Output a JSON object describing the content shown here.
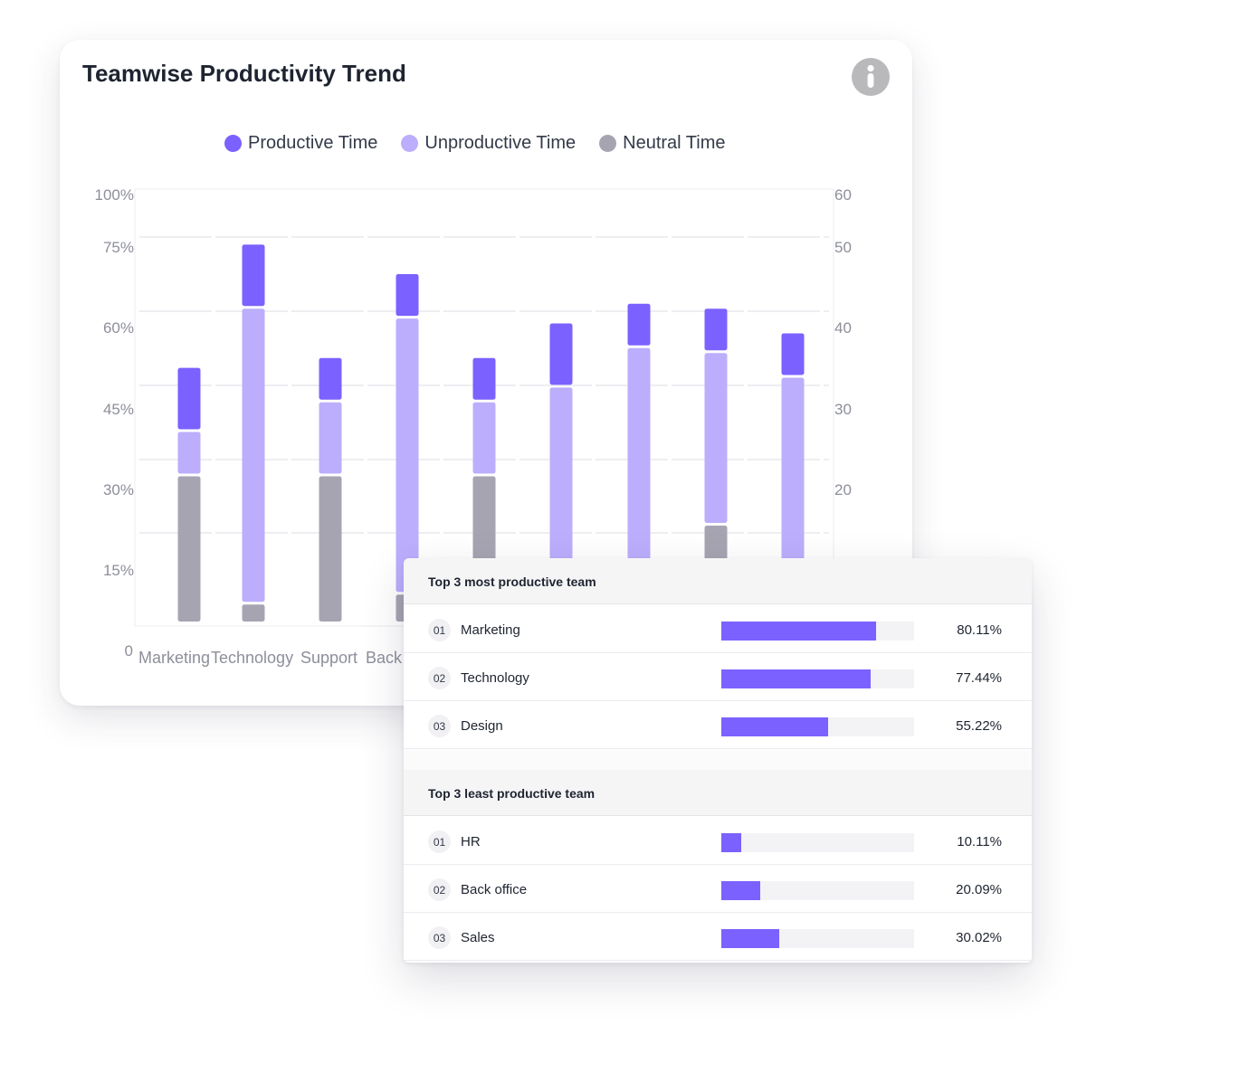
{
  "chart_data": {
    "type": "bar",
    "stacked": true,
    "title": "Teamwise Productivity Trend",
    "legend": [
      {
        "name": "Productive Time",
        "color": "#7b61ff"
      },
      {
        "name": "Unproductive Time",
        "color": "#bcaefc"
      },
      {
        "name": "Neutral Time",
        "color": "#a7a4b2"
      }
    ],
    "y_left_ticks": [
      "0",
      "15%",
      "30%",
      "45%",
      "60%",
      "75%",
      "100%"
    ],
    "y_right_ticks": [
      "20",
      "30",
      "40",
      "50",
      "60"
    ],
    "categories": [
      "Marketing",
      "Technology",
      "Support",
      "Back",
      "",
      "",
      "",
      "",
      ""
    ],
    "series": [
      {
        "name": "Neutral Time",
        "color": "#a7a4b2",
        "values": [
          30,
          4,
          30,
          6,
          30,
          0,
          0,
          20,
          0
        ]
      },
      {
        "name": "Unproductive Time",
        "color": "#bcaefc",
        "values": [
          9,
          60,
          15,
          56,
          15,
          48,
          56,
          35,
          50
        ]
      },
      {
        "name": "Productive Time",
        "color": "#7b61ff",
        "values": [
          13,
          13,
          9,
          9,
          9,
          13,
          9,
          9,
          9
        ]
      }
    ],
    "grid": true,
    "legend_position": "top"
  },
  "info_icon": "info-icon",
  "most_productive": {
    "title": "Top 3 most productive team",
    "rows": [
      {
        "rank": "01",
        "name": "Marketing",
        "pct": "80.11%",
        "value": 0.8011
      },
      {
        "rank": "02",
        "name": "Technology",
        "pct": "77.44%",
        "value": 0.7744
      },
      {
        "rank": "03",
        "name": "Design",
        "pct": "55.22%",
        "value": 0.5522
      }
    ]
  },
  "least_productive": {
    "title": "Top 3 least productive team",
    "rows": [
      {
        "rank": "01",
        "name": "HR",
        "pct": "10.11%",
        "value": 0.1011
      },
      {
        "rank": "02",
        "name": "Back office",
        "pct": "20.09%",
        "value": 0.2009
      },
      {
        "rank": "03",
        "name": "Sales",
        "pct": "30.02%",
        "value": 0.3002
      }
    ]
  }
}
